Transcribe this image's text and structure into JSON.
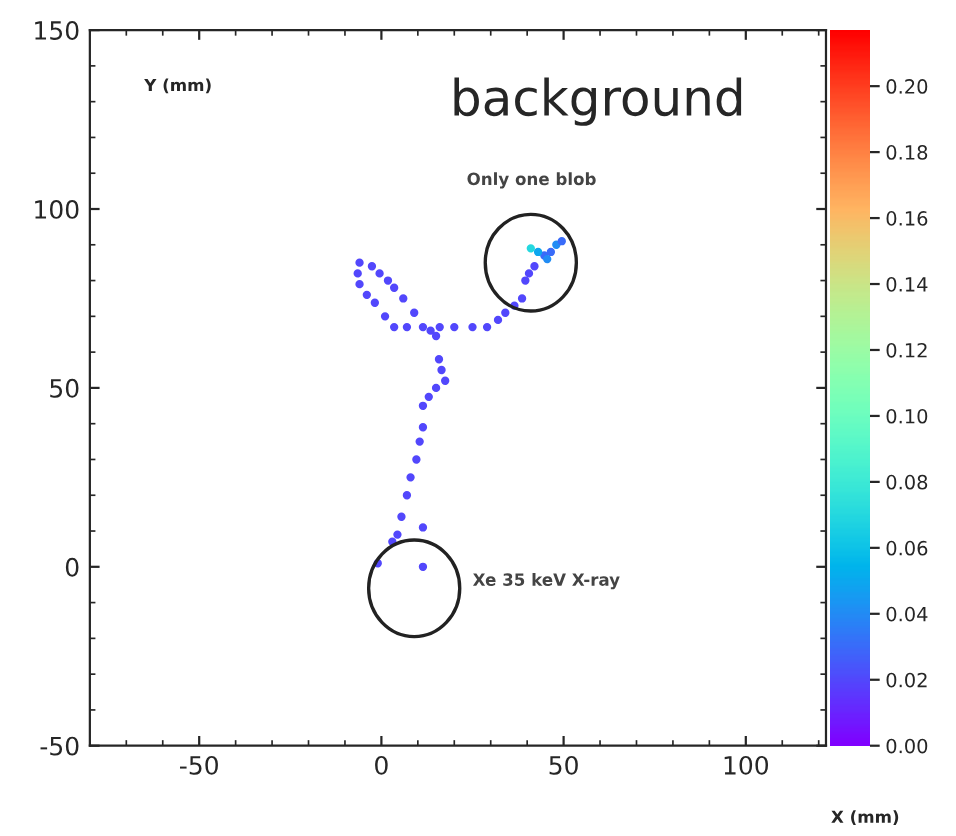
{
  "chart_data": {
    "type": "scatter",
    "title": "background",
    "xlabel": "X (mm)",
    "ylabel": "Y (mm)",
    "annotations": [
      "Only one blob",
      "Xe 35 keV X-ray"
    ],
    "series": [
      {
        "x": [
          -1,
          3,
          4.4,
          5.5,
          7,
          8,
          9.6,
          10.5,
          11.4,
          11.4,
          13,
          15,
          17.5,
          16.5,
          15.8,
          15,
          13.5,
          9,
          6,
          3.5,
          1.8,
          -0.5,
          -2.6,
          -6,
          -6.5,
          -6,
          -4,
          -1.8,
          1,
          3.5,
          7,
          11.4,
          16,
          20,
          25,
          29,
          32,
          34,
          36.5,
          38.6,
          39.5,
          40.5,
          42,
          44.7,
          46.5,
          48,
          49.5,
          41,
          43,
          45.5,
          11.4,
          11.4
        ],
        "values": [
          1,
          7,
          9,
          14,
          20,
          25,
          30,
          35,
          39,
          45,
          47.5,
          50,
          52,
          55,
          58,
          64.5,
          66,
          71,
          75,
          78,
          80,
          82,
          84,
          85,
          82,
          79,
          76,
          73.8,
          70,
          67,
          67,
          67,
          67,
          67,
          67,
          67,
          69,
          71,
          73,
          75,
          80,
          82,
          84,
          87,
          88,
          90,
          91,
          89,
          88,
          86,
          0,
          11
        ],
        "cvalues": [
          0.02,
          0.02,
          0.02,
          0.02,
          0.02,
          0.02,
          0.02,
          0.02,
          0.02,
          0.02,
          0.02,
          0.02,
          0.02,
          0.02,
          0.02,
          0.02,
          0.02,
          0.02,
          0.02,
          0.02,
          0.02,
          0.02,
          0.02,
          0.02,
          0.02,
          0.02,
          0.02,
          0.02,
          0.02,
          0.02,
          0.02,
          0.02,
          0.02,
          0.02,
          0.02,
          0.02,
          0.02,
          0.02,
          0.02,
          0.02,
          0.02,
          0.02,
          0.02,
          0.03,
          0.03,
          0.04,
          0.03,
          0.07,
          0.05,
          0.04,
          0.02,
          0.02
        ]
      }
    ],
    "xlim": [
      -80,
      122
    ],
    "ylim": [
      -50,
      150
    ],
    "xticks": [
      -50,
      0,
      50,
      100
    ],
    "yticks": [
      -50,
      0,
      50,
      100,
      150
    ],
    "clim": [
      0,
      0.217
    ],
    "cticks": [
      {
        "value": 0,
        "label": "0.00"
      },
      {
        "value": 0.02,
        "label": "0.02"
      },
      {
        "value": 0.04,
        "label": "0.04"
      },
      {
        "value": 0.06,
        "label": "0.06"
      },
      {
        "value": 0.08,
        "label": "0.08"
      },
      {
        "value": 0.1,
        "label": "0.10"
      },
      {
        "value": 0.12,
        "label": "0.12"
      },
      {
        "value": 0.14,
        "label": "0.14"
      },
      {
        "value": 0.16,
        "label": "0.16"
      },
      {
        "value": 0.18,
        "label": "0.18"
      },
      {
        "value": 0.2,
        "label": "0.20"
      }
    ],
    "marker": "circle",
    "grid": false
  }
}
